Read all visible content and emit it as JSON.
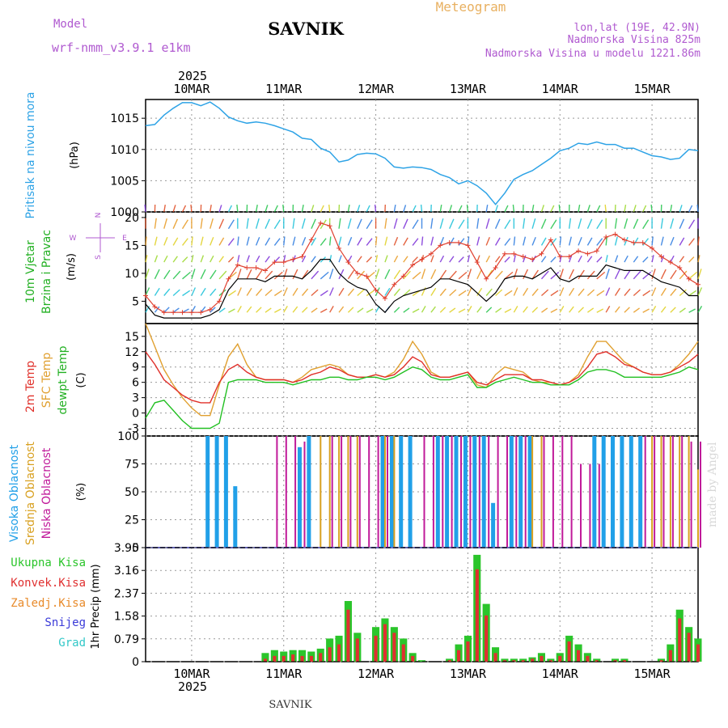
{
  "header": {
    "model_label": "Model",
    "model_name": "wrf-nmm_v3.9.1 e1km",
    "station": "SAVNIK",
    "product": "Meteogram",
    "coords": "lon,lat (19E, 42.9N)",
    "altitude": "Nadmorska Visina 825m",
    "model_altitude": "Nadmorska Visina u modelu 1221.86m",
    "watermark": "made by Angel",
    "footer_station": "SAVNIK"
  },
  "colors": {
    "pressure": "#2ea3e6",
    "wind_speed": "#000000",
    "gust": "#e04030",
    "temp2m": "#e0302a",
    "sfc_temp": "#e0a030",
    "dewpt": "#22c022",
    "cloud_high": "#21a0e8",
    "cloud_mid": "#d8a020",
    "cloud_low": "#c01a9a",
    "precip_total": "#2bc52b",
    "precip_conv": "#e03030",
    "precip_frz": "#e88a2a",
    "precip_snow": "#3a3ad8",
    "precip_hail": "#33c8c8",
    "grid": "#999999"
  },
  "time_axis": {
    "year": "2025",
    "days": [
      "10MAR",
      "11MAR",
      "12MAR",
      "13MAR",
      "14MAR",
      "15MAR"
    ],
    "start_day_offset": -0.5,
    "end_day_offset": 5.5
  },
  "chart_data": [
    {
      "type": "line",
      "panel": "pressure",
      "ylabel_left": "Pritisak na nivou mora",
      "ylabel_unit": "(hPa)",
      "ylim": [
        1000,
        1018
      ],
      "yticks": [
        1000,
        1005,
        1010,
        1015
      ],
      "x_unit": "days from 10MAR 00UTC",
      "x": [
        -0.5,
        -0.4,
        -0.3,
        -0.2,
        -0.1,
        0,
        0.1,
        0.2,
        0.3,
        0.4,
        0.5,
        0.6,
        0.7,
        0.8,
        0.9,
        1,
        1.1,
        1.2,
        1.3,
        1.4,
        1.5,
        1.6,
        1.7,
        1.8,
        1.9,
        2,
        2.1,
        2.2,
        2.3,
        2.4,
        2.5,
        2.6,
        2.7,
        2.8,
        2.9,
        3,
        3.1,
        3.2,
        3.3,
        3.4,
        3.5,
        3.6,
        3.7,
        3.8,
        3.9,
        4,
        4.1,
        4.2,
        4.3,
        4.4,
        4.5,
        4.6,
        4.7,
        4.8,
        4.9,
        5,
        5.1,
        5.2,
        5.3,
        5.4,
        5.5
      ],
      "series": [
        {
          "name": "",
          "values": [
            1013.8,
            1014.0,
            1015.5,
            1016.6,
            1017.5,
            1017.5,
            1017.0,
            1017.6,
            1016.6,
            1015.2,
            1014.6,
            1014.2,
            1014.4,
            1014.2,
            1013.8,
            1013.3,
            1012.8,
            1011.8,
            1011.6,
            1010.2,
            1009.6,
            1008.0,
            1008.3,
            1009.2,
            1009.4,
            1009.3,
            1008.6,
            1007.2,
            1007.0,
            1007.2,
            1007.1,
            1006.8,
            1006.0,
            1005.5,
            1004.5,
            1005.0,
            1004.2,
            1003.0,
            1001.2,
            1003.0,
            1005.2,
            1006.0,
            1006.6,
            1007.6,
            1008.6,
            1009.8,
            1010.2,
            1011.0,
            1010.8,
            1011.2,
            1010.8,
            1010.8,
            1010.2,
            1010.2,
            1009.6,
            1009.0,
            1008.8,
            1008.4,
            1008.6,
            1010.0,
            1009.8
          ]
        }
      ]
    },
    {
      "type": "line",
      "panel": "wind",
      "ylabel_left": [
        "10m Vjetar",
        "Brzina i Pravac"
      ],
      "ylabel_unit": "(m/s)",
      "direction_legend": [
        "N",
        "E",
        "S",
        "W"
      ],
      "ylim": [
        1,
        21
      ],
      "yticks": [
        5,
        10,
        15,
        20
      ],
      "x_unit": "days from 10MAR 00UTC",
      "x": [
        -0.5,
        -0.4,
        -0.3,
        -0.2,
        -0.1,
        0,
        0.1,
        0.2,
        0.3,
        0.4,
        0.5,
        0.6,
        0.7,
        0.8,
        0.9,
        1,
        1.1,
        1.2,
        1.3,
        1.4,
        1.5,
        1.6,
        1.7,
        1.8,
        1.9,
        2,
        2.1,
        2.2,
        2.3,
        2.4,
        2.5,
        2.6,
        2.7,
        2.8,
        2.9,
        3,
        3.1,
        3.2,
        3.3,
        3.4,
        3.5,
        3.6,
        3.7,
        3.8,
        3.9,
        4,
        4.1,
        4.2,
        4.3,
        4.4,
        4.5,
        4.6,
        4.7,
        4.8,
        4.9,
        5,
        5.1,
        5.2,
        5.3,
        5.4,
        5.5
      ],
      "series": [
        {
          "name": "",
          "values": [
            4.5,
            2.5,
            2.0,
            2.0,
            2.0,
            2.0,
            2.0,
            2.5,
            3.5,
            7.0,
            9.0,
            9.0,
            9.0,
            8.5,
            9.5,
            9.5,
            9.5,
            9.0,
            10.5,
            12.5,
            12.5,
            10.0,
            8.5,
            7.5,
            7.0,
            4.5,
            3.0,
            5.0,
            6.0,
            6.5,
            7.0,
            7.5,
            9.0,
            9.0,
            8.5,
            8.0,
            6.5,
            5.0,
            6.5,
            9.0,
            9.5,
            9.5,
            9.0,
            10.0,
            11.0,
            9.0,
            8.5,
            9.5,
            9.5,
            9.5,
            11.5,
            11.0,
            10.5,
            10.5,
            10.5,
            9.5,
            8.5,
            8.0,
            7.5,
            6.0,
            6.0
          ]
        },
        {
          "name": "",
          "values": [
            6.0,
            4.0,
            3.0,
            3.0,
            3.0,
            3.0,
            3.0,
            3.5,
            5.0,
            9.0,
            11.5,
            11.0,
            11.0,
            10.5,
            12.0,
            12.0,
            12.5,
            13.0,
            16.0,
            19.0,
            18.5,
            14.5,
            12.0,
            10.0,
            9.5,
            7.0,
            5.5,
            8.0,
            9.5,
            11.5,
            12.5,
            13.5,
            15.0,
            15.5,
            15.5,
            15.0,
            12.0,
            9.0,
            11.0,
            13.5,
            13.5,
            13.0,
            12.5,
            13.5,
            16.0,
            13.0,
            13.0,
            14.0,
            13.5,
            14.0,
            16.5,
            17.0,
            16.0,
            15.5,
            15.5,
            14.5,
            13.0,
            12.0,
            11.0,
            9.0,
            8.0
          ]
        }
      ]
    },
    {
      "type": "line",
      "panel": "temperature",
      "ylabel_left": [
        "2m Temp",
        "SFC Temp",
        "dewpt Temp"
      ],
      "ylabel_unit": "(C)",
      "ylim": [
        -4.5,
        17.5
      ],
      "yticks": [
        -3,
        0,
        3,
        6,
        9,
        12,
        15
      ],
      "x_unit": "days from 10MAR 00UTC",
      "x": [
        -0.5,
        -0.4,
        -0.3,
        -0.2,
        -0.1,
        0,
        0.1,
        0.2,
        0.3,
        0.4,
        0.5,
        0.6,
        0.7,
        0.8,
        0.9,
        1,
        1.1,
        1.2,
        1.3,
        1.4,
        1.5,
        1.6,
        1.7,
        1.8,
        1.9,
        2,
        2.1,
        2.2,
        2.3,
        2.4,
        2.5,
        2.6,
        2.7,
        2.8,
        2.9,
        3,
        3.1,
        3.2,
        3.3,
        3.4,
        3.5,
        3.6,
        3.7,
        3.8,
        3.9,
        4,
        4.1,
        4.2,
        4.3,
        4.4,
        4.5,
        4.6,
        4.7,
        4.8,
        4.9,
        5,
        5.1,
        5.2,
        5.3,
        5.4,
        5.5
      ],
      "series": [
        {
          "name": "2m Temp",
          "values": [
            12.0,
            9.5,
            6.5,
            5.0,
            3.5,
            2.5,
            2.0,
            2.0,
            6.0,
            8.5,
            9.5,
            8.0,
            7.0,
            6.5,
            6.5,
            6.5,
            6.0,
            6.5,
            7.5,
            8.0,
            9.0,
            8.5,
            7.5,
            7.0,
            7.0,
            7.5,
            7.0,
            7.5,
            9.0,
            11.0,
            10.0,
            7.5,
            7.0,
            7.0,
            7.5,
            8.0,
            6.0,
            5.5,
            6.5,
            7.5,
            7.5,
            7.5,
            6.5,
            6.5,
            6.0,
            5.5,
            6.0,
            7.0,
            9.0,
            11.5,
            12.0,
            11.0,
            9.5,
            9.0,
            8.0,
            7.5,
            7.5,
            8.0,
            9.0,
            10.0,
            11.5
          ]
        },
        {
          "name": "SFC Temp",
          "values": [
            17.5,
            13.0,
            8.5,
            5.5,
            3.0,
            1.0,
            -0.5,
            -0.5,
            5.5,
            11.0,
            13.5,
            9.5,
            7.0,
            6.5,
            6.5,
            6.5,
            6.0,
            7.0,
            8.5,
            9.0,
            9.5,
            9.0,
            7.5,
            7.0,
            7.0,
            7.5,
            7.0,
            8.0,
            10.5,
            14.0,
            11.5,
            8.0,
            7.0,
            7.0,
            7.5,
            8.0,
            5.5,
            5.0,
            7.5,
            9.0,
            8.5,
            8.0,
            6.5,
            6.0,
            6.0,
            5.5,
            6.0,
            7.5,
            11.0,
            14.0,
            14.0,
            12.0,
            10.0,
            9.0,
            8.0,
            7.5,
            7.5,
            8.0,
            9.5,
            11.5,
            14.0
          ]
        },
        {
          "name": "dewpt Temp",
          "values": [
            -1.0,
            2.0,
            2.5,
            0.5,
            -1.5,
            -3.0,
            -3.0,
            -3.0,
            -2.0,
            6.0,
            6.5,
            6.5,
            6.5,
            6.0,
            6.0,
            6.0,
            5.5,
            6.0,
            6.5,
            6.5,
            7.0,
            7.0,
            6.5,
            6.5,
            7.0,
            7.0,
            6.5,
            7.0,
            8.0,
            9.0,
            8.5,
            7.0,
            6.5,
            6.5,
            7.0,
            7.5,
            5.0,
            5.0,
            6.0,
            6.5,
            7.0,
            6.5,
            6.0,
            6.0,
            5.5,
            5.5,
            5.5,
            6.5,
            8.0,
            8.5,
            8.5,
            8.0,
            7.0,
            7.0,
            7.0,
            7.0,
            7.0,
            7.5,
            8.0,
            9.0,
            8.5
          ]
        }
      ]
    },
    {
      "type": "bar",
      "panel": "clouds",
      "ylabel_left": [
        "Visoka Oblacnost",
        "Srednja Oblacnost",
        "Niska Oblacnost"
      ],
      "ylabel_unit": "(%)",
      "ylim": [
        0,
        100
      ],
      "yticks": [
        0,
        25,
        50,
        75,
        100
      ],
      "x_unit": "days from 10MAR 00UTC",
      "x": [
        -0.5,
        -0.4,
        -0.3,
        -0.2,
        -0.1,
        0,
        0.1,
        0.2,
        0.3,
        0.4,
        0.5,
        0.6,
        0.7,
        0.8,
        0.9,
        1,
        1.1,
        1.2,
        1.3,
        1.4,
        1.5,
        1.6,
        1.7,
        1.8,
        1.9,
        2,
        2.1,
        2.2,
        2.3,
        2.4,
        2.5,
        2.6,
        2.7,
        2.8,
        2.9,
        3,
        3.1,
        3.2,
        3.3,
        3.4,
        3.5,
        3.6,
        3.7,
        3.8,
        3.9,
        4,
        4.1,
        4.2,
        4.3,
        4.4,
        4.5,
        4.6,
        4.7,
        4.8,
        4.9,
        5,
        5.1,
        5.2,
        5.3,
        5.4,
        5.5
      ],
      "series": [
        {
          "name": "Visoka Oblacnost",
          "values": [
            0,
            0,
            0,
            0,
            0,
            0,
            0,
            100,
            100,
            100,
            55,
            0,
            0,
            0,
            0,
            0,
            0,
            90,
            100,
            0,
            0,
            0,
            0,
            0,
            0,
            0,
            100,
            100,
            100,
            100,
            0,
            0,
            100,
            100,
            100,
            100,
            100,
            100,
            40,
            0,
            100,
            100,
            100,
            0,
            0,
            0,
            0,
            0,
            0,
            100,
            100,
            100,
            100,
            100,
            100,
            0,
            0,
            0,
            0,
            0,
            0
          ]
        },
        {
          "name": "Srednja Oblacnost",
          "values": [
            0,
            0,
            0,
            0,
            0,
            0,
            0,
            0,
            0,
            0,
            0,
            0,
            0,
            0,
            0,
            0,
            0,
            0,
            0,
            100,
            100,
            100,
            100,
            100,
            0,
            0,
            100,
            100,
            0,
            0,
            0,
            0,
            0,
            0,
            0,
            0,
            0,
            0,
            0,
            0,
            0,
            0,
            100,
            100,
            0,
            0,
            0,
            0,
            0,
            0,
            0,
            0,
            0,
            0,
            0,
            100,
            100,
            100,
            100,
            100,
            70
          ]
        },
        {
          "name": "Niska Oblacnost",
          "values": [
            0,
            0,
            0,
            0,
            0,
            0,
            0,
            0,
            0,
            0,
            0,
            0,
            0,
            0,
            100,
            100,
            100,
            95,
            0,
            0,
            100,
            100,
            100,
            100,
            100,
            100,
            100,
            0,
            0,
            0,
            100,
            100,
            100,
            100,
            100,
            100,
            100,
            100,
            100,
            100,
            100,
            100,
            0,
            100,
            100,
            100,
            100,
            75,
            75,
            75,
            0,
            0,
            0,
            0,
            100,
            100,
            100,
            100,
            100,
            95,
            95
          ]
        }
      ]
    },
    {
      "type": "bar",
      "panel": "precipitation",
      "legend": [
        "Ukupna Kisa",
        "Konvek.Kisa",
        "Zaledj.Kisa",
        "Snijeg",
        "Grad"
      ],
      "ylabel_unit": "1hr Precip (mm)",
      "ylim": [
        0,
        3.95
      ],
      "yticks": [
        0,
        0.79,
        1.58,
        2.37,
        3.16,
        3.95
      ],
      "x_unit": "days from 10MAR 00UTC",
      "x": [
        -0.5,
        -0.4,
        -0.3,
        -0.2,
        -0.1,
        0,
        0.1,
        0.2,
        0.3,
        0.4,
        0.5,
        0.6,
        0.7,
        0.8,
        0.9,
        1,
        1.1,
        1.2,
        1.3,
        1.4,
        1.5,
        1.6,
        1.7,
        1.8,
        1.9,
        2,
        2.1,
        2.2,
        2.3,
        2.4,
        2.5,
        2.6,
        2.7,
        2.8,
        2.9,
        3,
        3.1,
        3.2,
        3.3,
        3.4,
        3.5,
        3.6,
        3.7,
        3.8,
        3.9,
        4,
        4.1,
        4.2,
        4.3,
        4.4,
        4.5,
        4.6,
        4.7,
        4.8,
        4.9,
        5,
        5.1,
        5.2,
        5.3,
        5.4,
        5.5
      ],
      "series": [
        {
          "name": "Ukupna Kisa",
          "values": [
            0,
            0,
            0,
            0,
            0,
            0,
            0,
            0,
            0,
            0,
            0,
            0,
            0,
            0.3,
            0.4,
            0.35,
            0.4,
            0.4,
            0.35,
            0.45,
            0.8,
            0.9,
            2.1,
            1.0,
            0,
            1.2,
            1.5,
            1.2,
            0.8,
            0.3,
            0.05,
            0,
            0,
            0.1,
            0.6,
            0.9,
            3.7,
            2.0,
            0.5,
            0.1,
            0.1,
            0.1,
            0.15,
            0.3,
            0.1,
            0.3,
            0.9,
            0.6,
            0.3,
            0.1,
            0,
            0.1,
            0.1,
            0,
            0,
            0,
            0.1,
            0.6,
            1.8,
            1.2,
            0.8
          ]
        },
        {
          "name": "Konvek.Kisa",
          "values": [
            0,
            0,
            0,
            0,
            0,
            0,
            0,
            0,
            0,
            0,
            0,
            0,
            0,
            0.1,
            0.2,
            0.2,
            0.25,
            0.2,
            0.2,
            0.3,
            0.5,
            0.6,
            1.8,
            0.8,
            0,
            0.9,
            1.3,
            1.0,
            0.6,
            0.2,
            0,
            0,
            0,
            0.05,
            0.4,
            0.7,
            3.2,
            1.6,
            0.3,
            0.05,
            0.05,
            0.05,
            0.1,
            0.2,
            0.05,
            0.2,
            0.7,
            0.4,
            0.2,
            0.05,
            0,
            0.05,
            0.05,
            0,
            0,
            0,
            0.05,
            0.4,
            1.5,
            1.0,
            0.6
          ]
        }
      ]
    }
  ]
}
